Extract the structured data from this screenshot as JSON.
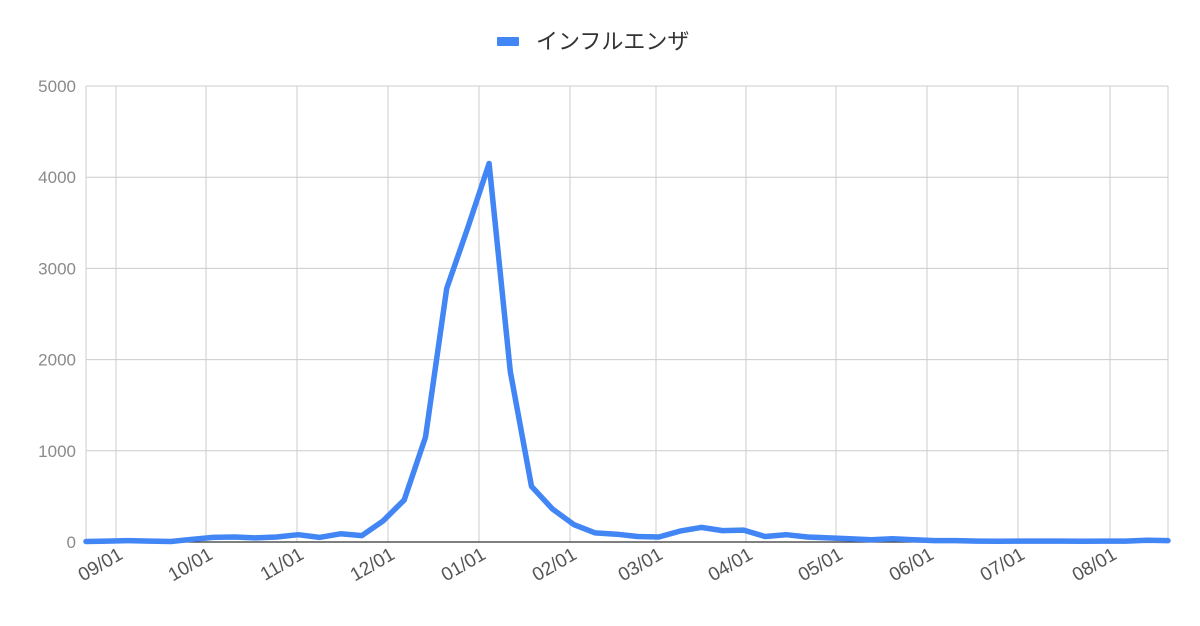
{
  "chart_data": {
    "type": "line",
    "title": "",
    "xlabel": "",
    "ylabel": "",
    "ylim": [
      0,
      5000
    ],
    "yticks": [
      "0",
      "1000",
      "2000",
      "3000",
      "4000",
      "5000"
    ],
    "month_labels": [
      "09/01",
      "10/01",
      "11/01",
      "12/01",
      "01/01",
      "02/01",
      "03/01",
      "04/01",
      "05/01",
      "06/01",
      "07/01",
      "08/01"
    ],
    "grid": true,
    "legend_position": "top",
    "series": [
      {
        "name": "インフルエンザ",
        "color": "#4285f4",
        "values": [
          5,
          10,
          15,
          10,
          5,
          30,
          50,
          55,
          45,
          55,
          80,
          50,
          90,
          70,
          230,
          460,
          1150,
          2780,
          3450,
          4150,
          1870,
          610,
          360,
          190,
          100,
          85,
          60,
          55,
          120,
          160,
          125,
          130,
          60,
          80,
          55,
          45,
          35,
          25,
          35,
          25,
          15,
          15,
          10,
          8,
          10,
          10,
          10,
          8,
          10,
          10,
          20,
          15
        ]
      }
    ]
  }
}
